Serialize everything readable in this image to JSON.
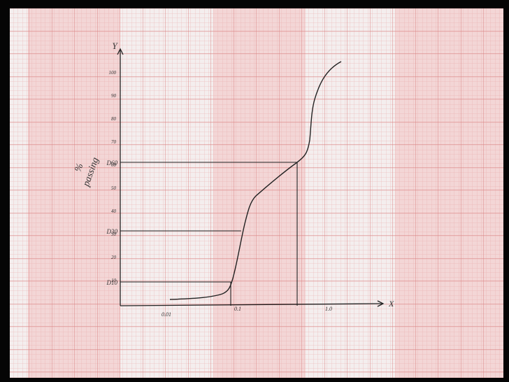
{
  "graph": {
    "y_axis_symbol": "Y",
    "x_axis_symbol": "X",
    "y_axis_label": [
      "%",
      "passing"
    ],
    "y_tick_labels": [
      "100",
      "90",
      "80",
      "70",
      "60",
      "50",
      "40",
      "30",
      "20",
      "10"
    ],
    "markers": [
      "D60",
      "D30",
      "D10"
    ],
    "x_labels": [
      "0.01",
      "0.1",
      "1.0"
    ]
  }
}
